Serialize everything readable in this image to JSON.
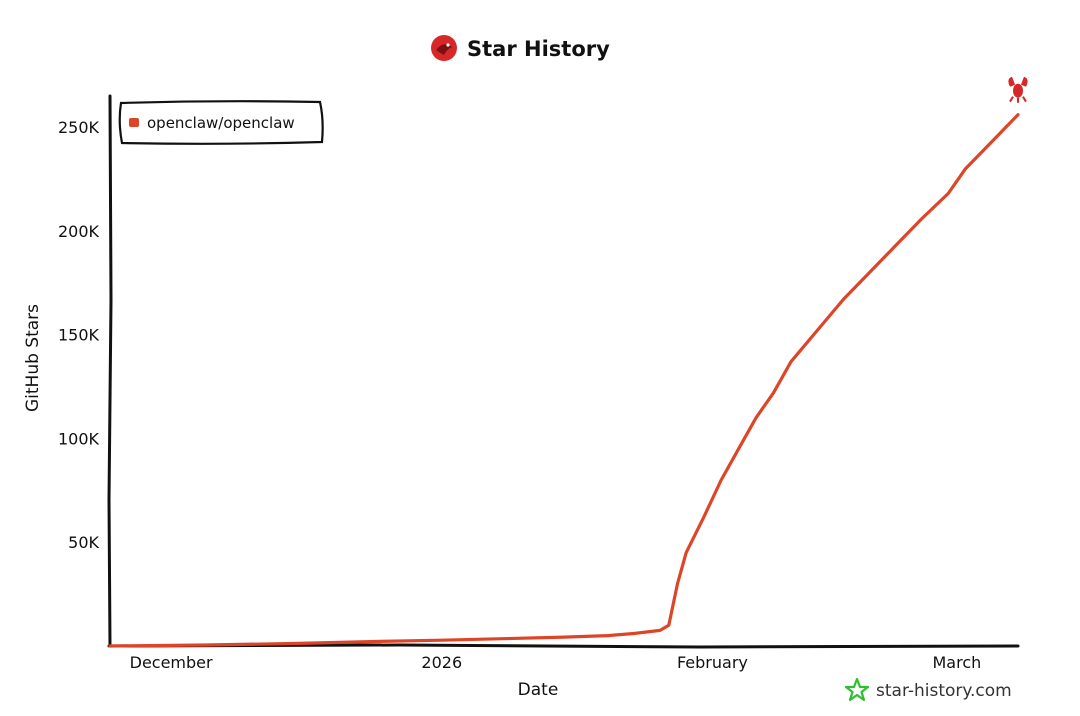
{
  "colors": {
    "series": "#dd4528",
    "axis": "#111111",
    "watermark_icon": "#2fc02f",
    "logo": "#d62828"
  },
  "icons": {
    "title_logo": "red-lobster-logo-icon",
    "end_marker": "lobster-icon",
    "watermark": "star-outline-icon"
  },
  "watermark": "star-history.com",
  "chart_data": {
    "type": "line",
    "title": "Star History",
    "xlabel": "Date",
    "ylabel": "GitHub Stars",
    "ylim": [
      0,
      265000
    ],
    "xlim": [
      "2025-11-24",
      "2026-03-08"
    ],
    "y_ticks": [
      {
        "value": 50000,
        "label": "50K"
      },
      {
        "value": 100000,
        "label": "100K"
      },
      {
        "value": 150000,
        "label": "150K"
      },
      {
        "value": 200000,
        "label": "200K"
      },
      {
        "value": 250000,
        "label": "250K"
      }
    ],
    "x_ticks": [
      {
        "value": "2025-12-01",
        "label": "December"
      },
      {
        "value": "2026-01-01",
        "label": "2026"
      },
      {
        "value": "2026-02-01",
        "label": "February"
      },
      {
        "value": "2026-03-01",
        "label": "March"
      }
    ],
    "grid": false,
    "legend_position": "top-left",
    "series": [
      {
        "name": "openclaw/openclaw",
        "points": [
          [
            "2025-11-24",
            0
          ],
          [
            "2025-12-05",
            500
          ],
          [
            "2025-12-15",
            1200
          ],
          [
            "2025-12-25",
            2200
          ],
          [
            "2026-01-01",
            2800
          ],
          [
            "2026-01-08",
            3500
          ],
          [
            "2026-01-15",
            4300
          ],
          [
            "2026-01-20",
            5000
          ],
          [
            "2026-01-23",
            6000
          ],
          [
            "2026-01-26",
            7500
          ],
          [
            "2026-01-27",
            10000
          ],
          [
            "2026-01-28",
            30000
          ],
          [
            "2026-01-29",
            45000
          ],
          [
            "2026-01-31",
            62000
          ],
          [
            "2026-02-02",
            80000
          ],
          [
            "2026-02-04",
            95000
          ],
          [
            "2026-02-06",
            110000
          ],
          [
            "2026-02-08",
            122000
          ],
          [
            "2026-02-10",
            137000
          ],
          [
            "2026-02-13",
            152000
          ],
          [
            "2026-02-16",
            167000
          ],
          [
            "2026-02-19",
            180000
          ],
          [
            "2026-02-22",
            193000
          ],
          [
            "2026-02-25",
            206000
          ],
          [
            "2026-02-28",
            218000
          ],
          [
            "2026-03-02",
            230000
          ],
          [
            "2026-03-05",
            243000
          ],
          [
            "2026-03-08",
            256000
          ]
        ]
      }
    ]
  }
}
